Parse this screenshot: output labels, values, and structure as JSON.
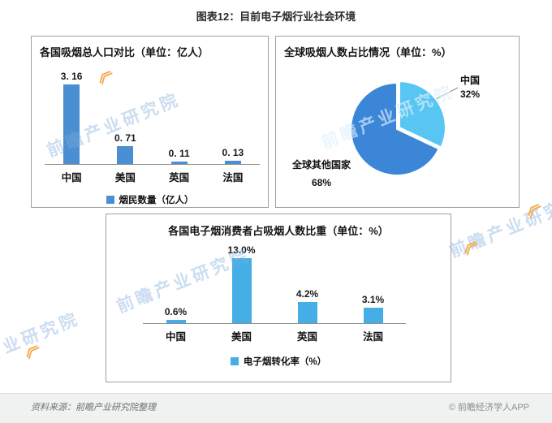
{
  "page": {
    "title": "图表12：目前电子烟行业社会环境",
    "footer": {
      "source": "资料来源：前瞻产业研究院整理",
      "brand": "© 前瞻经济学人APP"
    },
    "watermark_text": "前瞻产业研究院"
  },
  "icons": {
    "watermark_logo": "《"
  },
  "colors": {
    "bar_chart1": "#4a8fd2",
    "bar_chart2": "#45aee6",
    "pie_major": "#3c86d8",
    "pie_minor": "#58c6f2",
    "watermark_blue": "#83afdb",
    "logo_orange": "#f5a13d"
  },
  "chart_data": [
    {
      "type": "bar",
      "title": "各国吸烟总人口对比（单位：亿人）",
      "categories": [
        "中国",
        "美国",
        "英国",
        "法国"
      ],
      "values": [
        3.16,
        0.71,
        0.11,
        0.13
      ],
      "value_labels": [
        "3. 16",
        "0. 71",
        "0. 11",
        "0. 13"
      ],
      "legend": "烟民数量（亿人）",
      "ylim": [
        0,
        3.16
      ],
      "grid": false,
      "legend_position": "bottom"
    },
    {
      "type": "pie",
      "title": "全球吸烟人数占比情况（单位：%）",
      "slices": [
        {
          "name": "中国",
          "value": 32,
          "pct_label": "32%"
        },
        {
          "name": "全球其他国家",
          "value": 68,
          "pct_label": "68%"
        }
      ],
      "legend_position": "none"
    },
    {
      "type": "bar",
      "title": "各国电子烟消费者占吸烟人数比重（单位：%）",
      "categories": [
        "中国",
        "美国",
        "英国",
        "法国"
      ],
      "values": [
        0.6,
        13.0,
        4.2,
        3.1
      ],
      "value_labels": [
        "0.6%",
        "13.0%",
        "4.2%",
        "3.1%"
      ],
      "legend": "电子烟转化率（%）",
      "ylim": [
        0,
        13
      ],
      "grid": false,
      "legend_position": "bottom"
    }
  ]
}
